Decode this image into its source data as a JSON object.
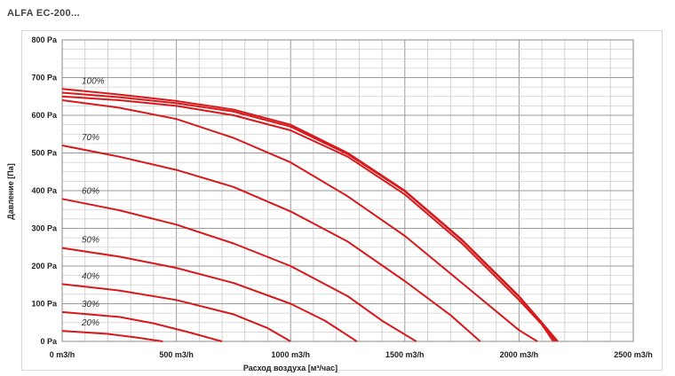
{
  "page": {
    "title": "ALFA EC-200..."
  },
  "chart_data": {
    "type": "line",
    "title": "",
    "xlabel": "Расход воздуха [м³/час]",
    "ylabel": "Давление [Па]",
    "xlim": [
      0,
      2500
    ],
    "ylim": [
      0,
      800
    ],
    "grid": true,
    "x_ticks": [
      {
        "value": 0,
        "label": "0 m3/h"
      },
      {
        "value": 500,
        "label": "500 m3/h"
      },
      {
        "value": 1000,
        "label": "1000 m3/h"
      },
      {
        "value": 1500,
        "label": "1500 m3/h"
      },
      {
        "value": 2000,
        "label": "2000 m3/h"
      },
      {
        "value": 2500,
        "label": "2500 m3/h"
      }
    ],
    "y_ticks": [
      {
        "value": 0,
        "label": "0 Pa"
      },
      {
        "value": 100,
        "label": "100 Pa"
      },
      {
        "value": 200,
        "label": "200 Pa"
      },
      {
        "value": 300,
        "label": "300 Pa"
      },
      {
        "value": 400,
        "label": "400 Pa"
      },
      {
        "value": 500,
        "label": "500 Pa"
      },
      {
        "value": 600,
        "label": "600 Pa"
      },
      {
        "value": 700,
        "label": "700 Pa"
      },
      {
        "value": 800,
        "label": "800 Pa"
      }
    ],
    "line_color": "#d7191c",
    "series": [
      {
        "name": "100%",
        "points": [
          [
            0,
            670
          ],
          [
            250,
            655
          ],
          [
            500,
            638
          ],
          [
            750,
            615
          ],
          [
            1000,
            575
          ],
          [
            1250,
            500
          ],
          [
            1500,
            400
          ],
          [
            1750,
            270
          ],
          [
            2000,
            120
          ],
          [
            2100,
            50
          ],
          [
            2170,
            0
          ]
        ]
      },
      {
        "name": "",
        "points": [
          [
            0,
            660
          ],
          [
            250,
            648
          ],
          [
            500,
            632
          ],
          [
            750,
            610
          ],
          [
            1000,
            570
          ],
          [
            1250,
            497
          ],
          [
            1500,
            398
          ],
          [
            1750,
            268
          ],
          [
            2000,
            118
          ],
          [
            2100,
            48
          ],
          [
            2160,
            0
          ]
        ]
      },
      {
        "name": "",
        "points": [
          [
            0,
            650
          ],
          [
            250,
            640
          ],
          [
            500,
            625
          ],
          [
            750,
            600
          ],
          [
            1000,
            560
          ],
          [
            1250,
            490
          ],
          [
            1500,
            390
          ],
          [
            1750,
            260
          ],
          [
            2000,
            110
          ],
          [
            2100,
            45
          ],
          [
            2150,
            0
          ]
        ]
      },
      {
        "name": "",
        "points": [
          [
            0,
            640
          ],
          [
            250,
            620
          ],
          [
            500,
            590
          ],
          [
            750,
            540
          ],
          [
            1000,
            475
          ],
          [
            1250,
            385
          ],
          [
            1500,
            280
          ],
          [
            1750,
            155
          ],
          [
            2000,
            30
          ],
          [
            2080,
            0
          ]
        ]
      },
      {
        "name": "70%",
        "points": [
          [
            0,
            520
          ],
          [
            250,
            490
          ],
          [
            500,
            455
          ],
          [
            750,
            410
          ],
          [
            1000,
            345
          ],
          [
            1250,
            265
          ],
          [
            1500,
            160
          ],
          [
            1700,
            70
          ],
          [
            1830,
            0
          ]
        ]
      },
      {
        "name": "60%",
        "points": [
          [
            0,
            378
          ],
          [
            250,
            348
          ],
          [
            500,
            310
          ],
          [
            750,
            260
          ],
          [
            1000,
            200
          ],
          [
            1250,
            120
          ],
          [
            1400,
            55
          ],
          [
            1550,
            0
          ]
        ]
      },
      {
        "name": "50%",
        "points": [
          [
            0,
            248
          ],
          [
            250,
            225
          ],
          [
            500,
            195
          ],
          [
            750,
            155
          ],
          [
            1000,
            100
          ],
          [
            1150,
            55
          ],
          [
            1290,
            0
          ]
        ]
      },
      {
        "name": "40%",
        "points": [
          [
            0,
            152
          ],
          [
            250,
            135
          ],
          [
            500,
            110
          ],
          [
            750,
            72
          ],
          [
            900,
            35
          ],
          [
            1000,
            0
          ]
        ]
      },
      {
        "name": "30%",
        "points": [
          [
            0,
            78
          ],
          [
            250,
            65
          ],
          [
            400,
            48
          ],
          [
            550,
            25
          ],
          [
            700,
            0
          ]
        ]
      },
      {
        "name": "20%",
        "points": [
          [
            0,
            28
          ],
          [
            200,
            20
          ],
          [
            330,
            10
          ],
          [
            440,
            0
          ]
        ]
      }
    ]
  }
}
